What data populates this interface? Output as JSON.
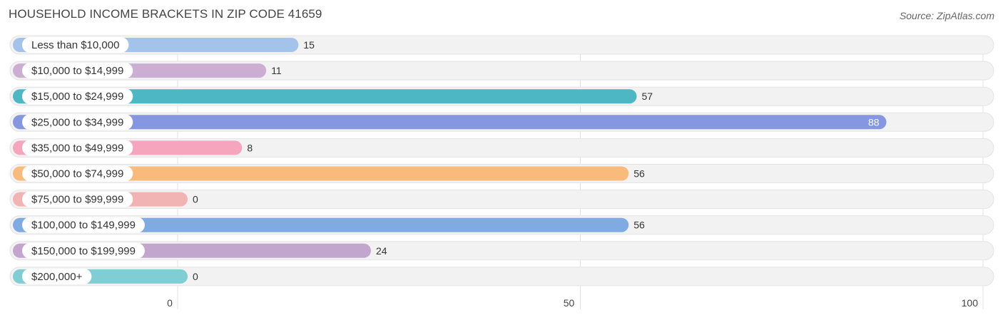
{
  "header": {
    "title": "HOUSEHOLD INCOME BRACKETS IN ZIP CODE 41659",
    "source": "Source: ZipAtlas.com"
  },
  "chart_data": {
    "type": "bar",
    "orientation": "horizontal",
    "title": "HOUSEHOLD INCOME BRACKETS IN ZIP CODE 41659",
    "categories": [
      "Less than $10,000",
      "$10,000 to $14,999",
      "$15,000 to $24,999",
      "$25,000 to $34,999",
      "$35,000 to $49,999",
      "$50,000 to $74,999",
      "$75,000 to $99,999",
      "$100,000 to $149,999",
      "$150,000 to $199,999",
      "$200,000+"
    ],
    "values": [
      15,
      11,
      57,
      88,
      8,
      56,
      0,
      56,
      24,
      0
    ],
    "colors": [
      "#a4c3ea",
      "#cbaed2",
      "#4db8c4",
      "#8497e0",
      "#f5a6be",
      "#f9bb7c",
      "#f2b3b3",
      "#7fabe2",
      "#c3a6cd",
      "#80cdd3"
    ],
    "xlim": [
      0,
      100
    ],
    "xticks": [
      0,
      50,
      100
    ],
    "xlabel": "",
    "ylabel": "",
    "grid": true
  }
}
